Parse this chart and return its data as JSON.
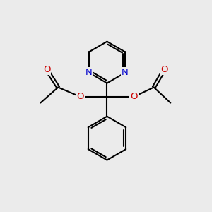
{
  "bg_color": "#ebebeb",
  "bond_color": "#000000",
  "N_color": "#0000cc",
  "O_color": "#cc0000",
  "line_width": 1.5,
  "figsize": [
    3.0,
    3.0
  ],
  "dpi": 100,
  "xlim": [
    0,
    10
  ],
  "ylim": [
    0,
    10
  ],
  "font_size_atom": 9.5
}
